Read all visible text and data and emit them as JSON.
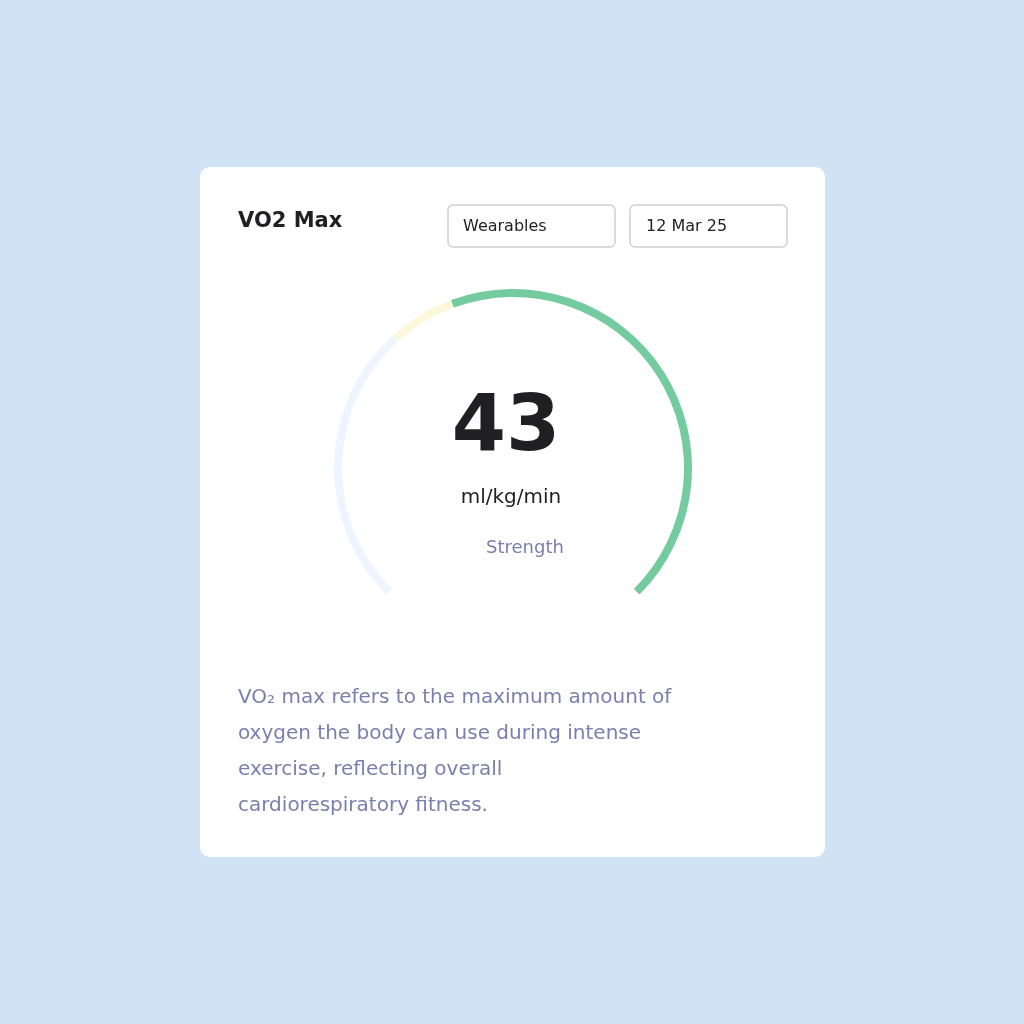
{
  "chart_data": {
    "type": "donut",
    "title": "VO2 Max",
    "categories": [
      null,
      null,
      null
    ],
    "values": [
      34.4,
      8.1,
      57.5
    ],
    "colors": [
      "#eef5fe",
      "#fdf8dc",
      "#74cb9f"
    ],
    "annotations": [
      "Wearables",
      "12 Mar 25",
      "43",
      "ml/kg/min",
      "Strength",
      "VO₂ max refers to the maximum amount of oxygen the body can use during intense exercise, reflecting overall cardiorespiratory fitness."
    ]
  }
}
